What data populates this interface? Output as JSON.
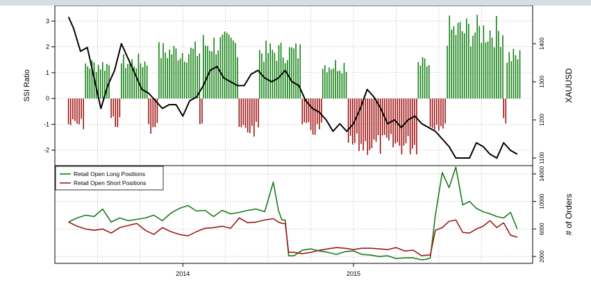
{
  "chart_data": [
    {
      "type": "bar+line",
      "panel": "top",
      "ylabel_left": "SSI Ratio",
      "ylabel_right": "XAUUSD",
      "y_left_ticks": [
        -2,
        -1,
        0,
        1,
        2,
        3
      ],
      "y_left_range": [
        -2.6,
        3.6
      ],
      "y_right_ticks": [
        1100,
        1200,
        1300,
        1400
      ],
      "y_right_range": [
        1080,
        1500
      ],
      "grid": true,
      "ssi_segments": [
        {
          "start": 2013.33,
          "end": 2013.43,
          "sign": -1,
          "level": 1.0
        },
        {
          "start": 2013.43,
          "end": 2013.58,
          "sign": 1,
          "level": 1.3
        },
        {
          "start": 2013.58,
          "end": 2013.64,
          "sign": -1,
          "level": 0.9
        },
        {
          "start": 2013.64,
          "end": 2013.8,
          "sign": 1,
          "level": 1.4
        },
        {
          "start": 2013.8,
          "end": 2013.86,
          "sign": -1,
          "level": 1.2
        },
        {
          "start": 2013.86,
          "end": 2014.1,
          "sign": 1,
          "level": 1.8
        },
        {
          "start": 2014.1,
          "end": 2014.12,
          "sign": -1,
          "level": 1.0
        },
        {
          "start": 2014.12,
          "end": 2014.33,
          "sign": 1,
          "level": 2.1
        },
        {
          "start": 2014.33,
          "end": 2014.45,
          "sign": -1,
          "level": 1.2
        },
        {
          "start": 2014.45,
          "end": 2014.7,
          "sign": 1,
          "level": 1.8
        },
        {
          "start": 2014.7,
          "end": 2014.82,
          "sign": -1,
          "level": 1.2
        },
        {
          "start": 2014.82,
          "end": 2014.97,
          "sign": 1,
          "level": 1.3
        },
        {
          "start": 2014.97,
          "end": 2015.38,
          "sign": -1,
          "level": 1.8
        },
        {
          "start": 2015.38,
          "end": 2015.45,
          "sign": 1,
          "level": 1.3
        },
        {
          "start": 2015.45,
          "end": 2015.55,
          "sign": -1,
          "level": 1.0
        },
        {
          "start": 2015.55,
          "end": 2015.88,
          "sign": 1,
          "level": 2.6
        },
        {
          "start": 2015.88,
          "end": 2015.9,
          "sign": -1,
          "level": 0.9
        },
        {
          "start": 2015.9,
          "end": 2015.98,
          "sign": 1,
          "level": 1.6
        }
      ],
      "xauusd": {
        "x": [
          2013.33,
          2013.36,
          2013.4,
          2013.44,
          2013.48,
          2013.52,
          2013.56,
          2013.6,
          2013.64,
          2013.68,
          2013.72,
          2013.76,
          2013.8,
          2013.84,
          2013.88,
          2013.92,
          2013.96,
          2014.0,
          2014.04,
          2014.08,
          2014.12,
          2014.16,
          2014.2,
          2014.24,
          2014.28,
          2014.32,
          2014.36,
          2014.4,
          2014.44,
          2014.48,
          2014.52,
          2014.56,
          2014.6,
          2014.64,
          2014.68,
          2014.72,
          2014.76,
          2014.8,
          2014.84,
          2014.88,
          2014.92,
          2014.96,
          2015.0,
          2015.04,
          2015.08,
          2015.12,
          2015.16,
          2015.2,
          2015.24,
          2015.28,
          2015.32,
          2015.36,
          2015.4,
          2015.44,
          2015.48,
          2015.52,
          2015.56,
          2015.6,
          2015.64,
          2015.68,
          2015.72,
          2015.76,
          2015.8,
          2015.84,
          2015.88,
          2015.92,
          2015.96
        ],
        "values": [
          1470,
          1440,
          1380,
          1390,
          1310,
          1230,
          1290,
          1330,
          1400,
          1360,
          1320,
          1280,
          1270,
          1250,
          1230,
          1240,
          1240,
          1210,
          1250,
          1260,
          1290,
          1330,
          1340,
          1310,
          1300,
          1290,
          1290,
          1320,
          1330,
          1310,
          1300,
          1310,
          1330,
          1300,
          1290,
          1250,
          1230,
          1220,
          1200,
          1170,
          1190,
          1170,
          1190,
          1230,
          1280,
          1260,
          1230,
          1190,
          1200,
          1180,
          1200,
          1210,
          1190,
          1180,
          1170,
          1150,
          1130,
          1100,
          1100,
          1100,
          1140,
          1130,
          1110,
          1100,
          1140,
          1120,
          1110
        ]
      }
    },
    {
      "type": "line",
      "panel": "bottom",
      "ylabel_right": "# of Orders",
      "y_right_ticks": [
        2000,
        6000,
        10000,
        14000
      ],
      "y_right_range": [
        1000,
        15200
      ],
      "x_ticks": [
        2014,
        2015
      ],
      "x_range": [
        2013.25,
        2016.05
      ],
      "grid": true,
      "legend_position": "top-left",
      "series": [
        {
          "name": "Retail Open Long Positions",
          "color": "#1a7a1a",
          "x": [
            2013.33,
            2013.38,
            2013.43,
            2013.48,
            2013.53,
            2013.58,
            2013.63,
            2013.68,
            2013.73,
            2013.78,
            2013.83,
            2013.88,
            2013.93,
            2013.98,
            2014.03,
            2014.08,
            2014.13,
            2014.18,
            2014.23,
            2014.28,
            2014.33,
            2014.38,
            2014.43,
            2014.48,
            2014.53,
            2014.56,
            2014.58,
            2014.6,
            2014.62,
            2014.65,
            2014.7,
            2014.75,
            2014.8,
            2014.85,
            2014.9,
            2014.95,
            2015.0,
            2015.05,
            2015.1,
            2015.15,
            2015.2,
            2015.25,
            2015.3,
            2015.35,
            2015.4,
            2015.43,
            2015.45,
            2015.48,
            2015.52,
            2015.56,
            2015.6,
            2015.64,
            2015.68,
            2015.72,
            2015.76,
            2015.8,
            2015.84,
            2015.88,
            2015.92,
            2015.96
          ],
          "values": [
            7000,
            7600,
            8000,
            7800,
            8900,
            7000,
            7600,
            7200,
            7400,
            7600,
            8000,
            7200,
            8300,
            9000,
            9400,
            8600,
            8700,
            7800,
            8700,
            8200,
            8400,
            8700,
            8900,
            8500,
            12800,
            8700,
            7300,
            7300,
            2100,
            2100,
            2900,
            3100,
            2800,
            2600,
            2300,
            2700,
            2800,
            2300,
            2200,
            2000,
            2100,
            1700,
            1800,
            1800,
            1500,
            1600,
            1800,
            8000,
            14200,
            12000,
            15000,
            9500,
            10000,
            9000,
            8500,
            8200,
            7800,
            7600,
            8400,
            6000
          ]
        },
        {
          "name": "Retail Open Short Positions",
          "color": "#a01818",
          "x": [
            2013.33,
            2013.38,
            2013.43,
            2013.48,
            2013.53,
            2013.58,
            2013.63,
            2013.68,
            2013.73,
            2013.78,
            2013.83,
            2013.88,
            2013.93,
            2013.98,
            2014.03,
            2014.08,
            2014.13,
            2014.18,
            2014.23,
            2014.28,
            2014.33,
            2014.38,
            2014.43,
            2014.48,
            2014.53,
            2014.56,
            2014.58,
            2014.6,
            2014.62,
            2014.65,
            2014.7,
            2014.75,
            2014.8,
            2014.85,
            2014.9,
            2014.95,
            2015.0,
            2015.05,
            2015.1,
            2015.15,
            2015.2,
            2015.25,
            2015.3,
            2015.35,
            2015.4,
            2015.43,
            2015.45,
            2015.48,
            2015.52,
            2015.56,
            2015.6,
            2015.64,
            2015.68,
            2015.72,
            2015.76,
            2015.8,
            2015.84,
            2015.88,
            2015.92,
            2015.96
          ],
          "values": [
            7000,
            6400,
            6000,
            5800,
            6000,
            5400,
            6200,
            6500,
            6800,
            5800,
            5200,
            6200,
            5600,
            5200,
            5000,
            5600,
            6100,
            6200,
            6400,
            6100,
            7600,
            6900,
            7000,
            7300,
            7500,
            7000,
            6800,
            6800,
            2600,
            2600,
            2400,
            2600,
            2900,
            3100,
            3300,
            3200,
            3000,
            3200,
            3200,
            3100,
            3000,
            3300,
            2800,
            2900,
            2100,
            2200,
            2200,
            5800,
            6200,
            7100,
            7300,
            5500,
            5400,
            6000,
            6400,
            7200,
            6200,
            6900,
            5100,
            4800
          ]
        }
      ]
    }
  ]
}
